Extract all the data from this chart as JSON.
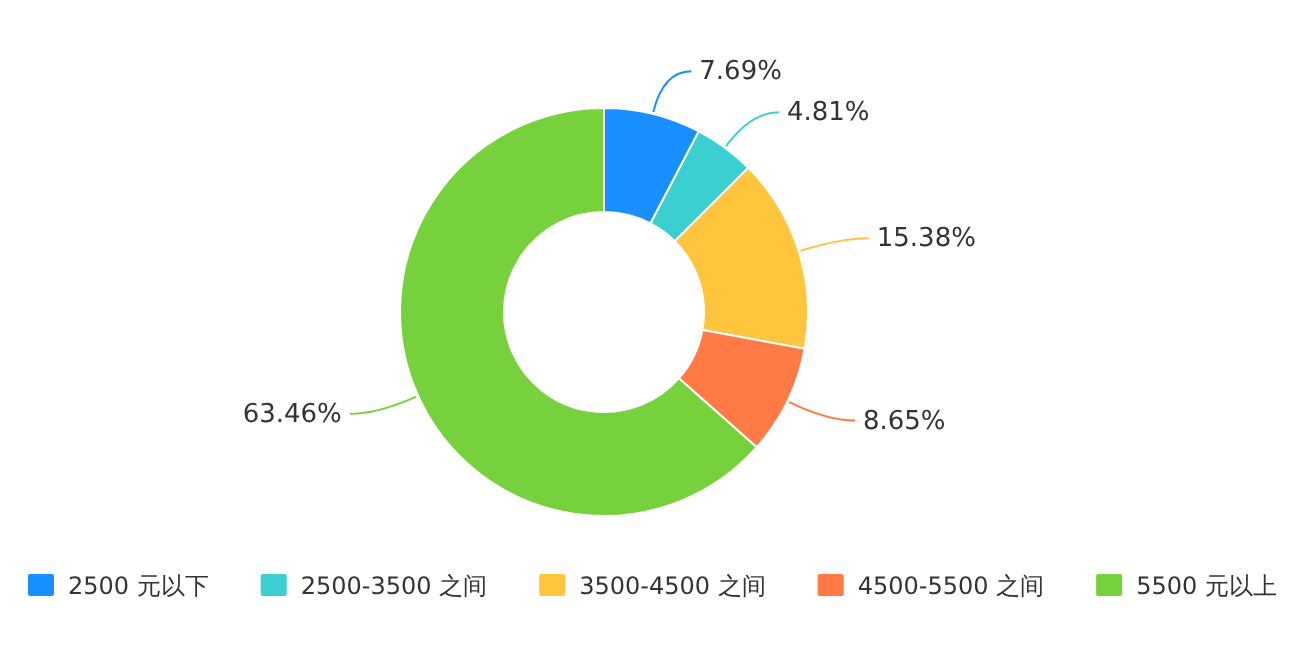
{
  "chart_data": {
    "type": "donut",
    "categories": [
      "2500 元以下",
      "2500-3500 之间",
      "3500-4500 之间",
      "4500-5500 之间",
      "5500 元以上"
    ],
    "values": [
      7.69,
      4.81,
      15.38,
      8.65,
      63.46
    ],
    "colors": [
      "#1890ff",
      "#3ccfcf",
      "#ffc53d",
      "#ff7a45",
      "#77d13c"
    ],
    "value_labels": [
      "7.69%",
      "4.81%",
      "15.38%",
      "8.65%",
      "63.46%"
    ],
    "legend": "bottom"
  }
}
